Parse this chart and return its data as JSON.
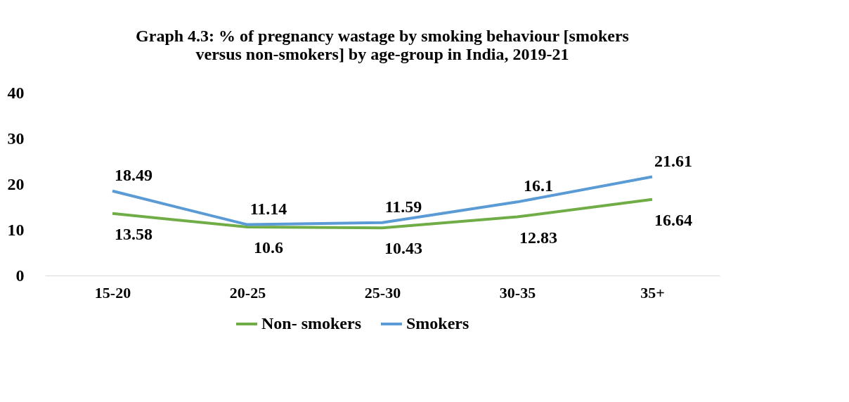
{
  "chart_data": {
    "type": "line",
    "title": [
      "Graph 4.3: % of pregnancy wastage by smoking behaviour [smokers",
      "versus non-smokers] by age-group in India, 2019-21"
    ],
    "categories": [
      "15-20",
      "20-25",
      "25-30",
      "30-35",
      "35+"
    ],
    "series": [
      {
        "name": "Non- smokers",
        "color": "#70ad47",
        "values": [
          13.58,
          10.6,
          10.43,
          12.83,
          16.64
        ]
      },
      {
        "name": "Smokers",
        "color": "#5b9bd5",
        "values": [
          18.49,
          11.14,
          11.59,
          16.1,
          21.61
        ]
      }
    ],
    "ylim": [
      0,
      40
    ],
    "yticks": [
      0,
      10,
      20,
      30,
      40
    ],
    "grid": false,
    "legend": "bottom",
    "data_labels": true,
    "marker": "none",
    "line_style": "solid"
  }
}
